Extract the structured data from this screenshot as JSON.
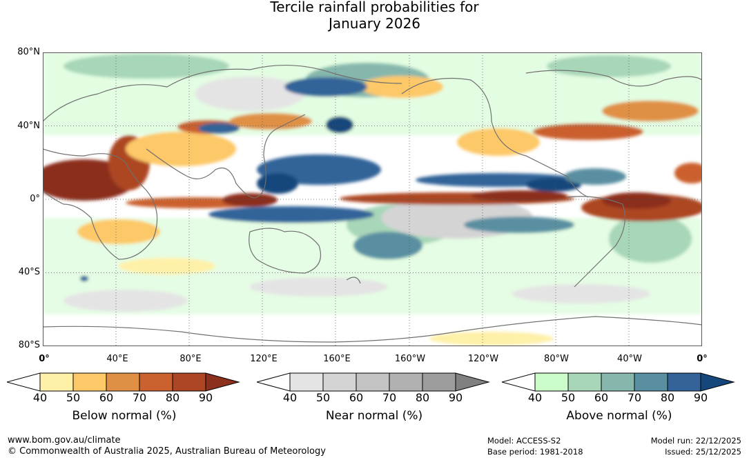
{
  "title": {
    "line1": "Tercile rainfall probabilities for",
    "line2": "January 2026"
  },
  "axes": {
    "lat_labels": [
      "80°N",
      "40°N",
      "0°",
      "40°S",
      "80°S"
    ],
    "lon_labels": [
      "0°",
      "40°E",
      "80°E",
      "120°E",
      "160°E",
      "160°W",
      "120°W",
      "80°W",
      "40°W",
      "0°"
    ]
  },
  "colorbars": [
    {
      "title": "Below normal (%)",
      "ticks": [
        "40",
        "50",
        "60",
        "70",
        "80",
        "90"
      ],
      "colors": [
        "#fff0a8",
        "#fdc867",
        "#e09045",
        "#cb612f",
        "#ad4624",
        "#8c2f1c"
      ]
    },
    {
      "title": "Near normal (%)",
      "ticks": [
        "40",
        "50",
        "60",
        "70",
        "80",
        "90"
      ],
      "colors": [
        "#e4e4e4",
        "#d4d4d4",
        "#c3c3c3",
        "#b1b1b1",
        "#9d9d9d",
        "#808080"
      ]
    },
    {
      "title": "Above normal (%)",
      "ticks": [
        "40",
        "50",
        "60",
        "70",
        "80",
        "90"
      ],
      "colors": [
        "#ccfcca",
        "#a8d6b8",
        "#86b7ad",
        "#5a8fa2",
        "#336399",
        "#15477c"
      ]
    }
  ],
  "footer": {
    "url": "www.bom.gov.au/climate",
    "copyright": "© Commonwealth of Australia 2025, Australian Bureau of Meteorology",
    "model": "Model: ACCESS-S2",
    "base_period": "Base period: 1981-2018",
    "model_run": "Model run: 22/12/2025",
    "issued": "Issued: 25/12/2025"
  }
}
